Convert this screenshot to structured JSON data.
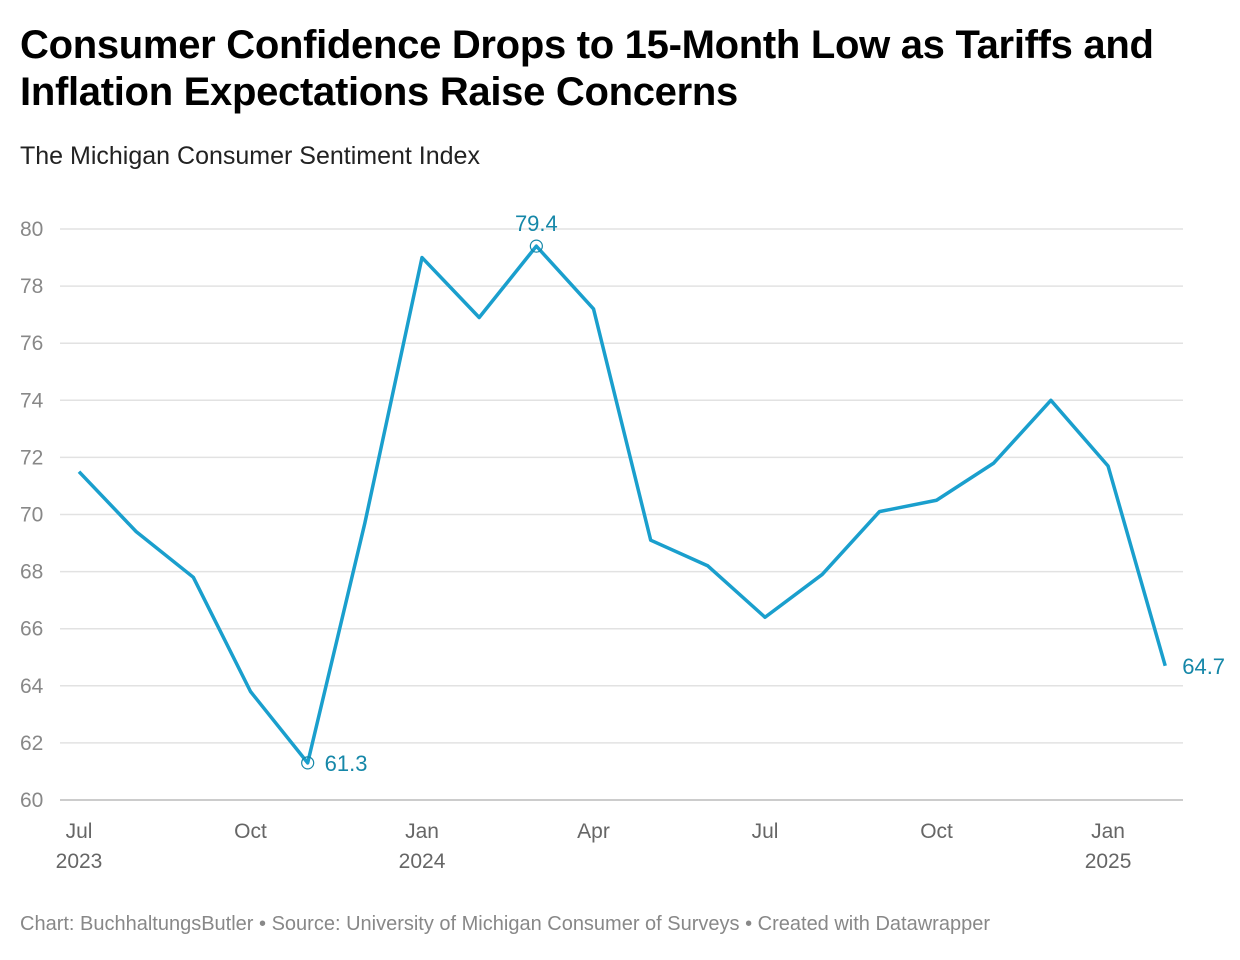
{
  "footer": {
    "text": "Chart: BuchhaltungsButler • Source: University of Michigan Consumer of Surveys • Created with Datawrapper"
  },
  "chart_data": {
    "type": "line",
    "title": "Consumer Confidence Drops to 15-Month Low as Tariffs and Inflation Expectations Raise Concerns",
    "subtitle": "The Michigan Consumer Sentiment Index",
    "x": [
      "2023-07",
      "2023-08",
      "2023-09",
      "2023-10",
      "2023-11",
      "2023-12",
      "2024-01",
      "2024-02",
      "2024-03",
      "2024-04",
      "2024-05",
      "2024-06",
      "2024-07",
      "2024-08",
      "2024-09",
      "2024-10",
      "2024-11",
      "2024-12",
      "2025-01",
      "2025-02"
    ],
    "series": [
      {
        "values": [
          71.5,
          69.4,
          67.8,
          63.8,
          61.3,
          69.7,
          79.0,
          76.9,
          79.4,
          77.2,
          69.1,
          68.2,
          66.4,
          67.9,
          70.1,
          70.5,
          71.8,
          74.0,
          71.7,
          64.7
        ],
        "color": "#1a9fcd"
      }
    ],
    "ylim": [
      60,
      80
    ],
    "yticks": [
      60,
      62,
      64,
      66,
      68,
      70,
      72,
      74,
      76,
      78,
      80
    ],
    "xticks": [
      {
        "month": 0,
        "label": "Jul",
        "year": "2023"
      },
      {
        "month": 3,
        "label": "Oct",
        "year": ""
      },
      {
        "month": 6,
        "label": "Jan",
        "year": "2024"
      },
      {
        "month": 9,
        "label": "Apr",
        "year": ""
      },
      {
        "month": 12,
        "label": "Jul",
        "year": ""
      },
      {
        "month": 15,
        "label": "Oct",
        "year": ""
      },
      {
        "month": 18,
        "label": "Jan",
        "year": "2025"
      }
    ],
    "annotations": [
      {
        "index": 4,
        "label": "61.3",
        "marker": true
      },
      {
        "index": 8,
        "label": "79.4",
        "marker": true
      },
      {
        "index": 19,
        "label": "64.7",
        "marker": false
      }
    ],
    "grid": true,
    "annotation_color": "#1587a8"
  }
}
